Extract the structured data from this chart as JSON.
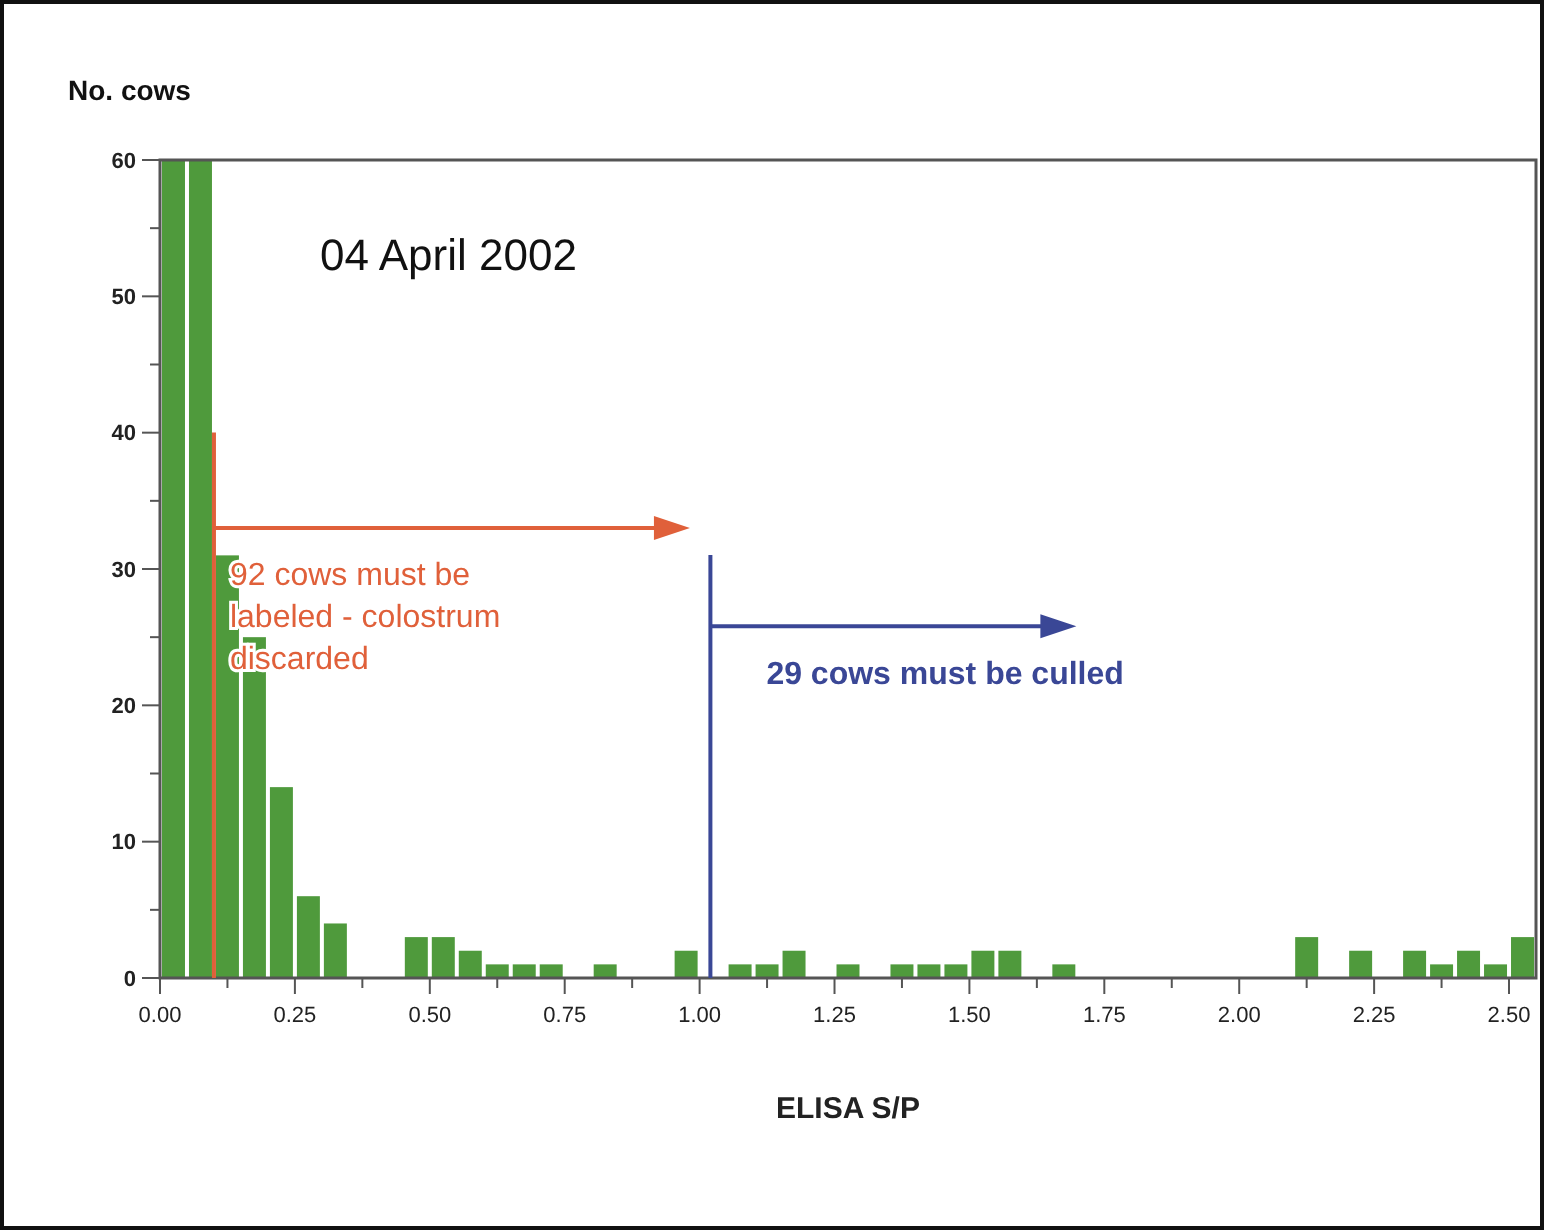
{
  "chart_data": {
    "type": "histogram",
    "title": "04 April 2002",
    "xlabel": "ELISA S/P",
    "ylabel": "No. cows",
    "bins": [
      0,
      0.05,
      0.1,
      0.15,
      0.2,
      0.25,
      0.3,
      0.35,
      0.4,
      0.45,
      0.5,
      0.55,
      0.6,
      0.65,
      0.7,
      0.75,
      0.8,
      0.85,
      0.9,
      0.95,
      1,
      1.05,
      1.1,
      1.15,
      1.2,
      1.25,
      1.3,
      1.35,
      1.4,
      1.45,
      1.5,
      1.55,
      1.6,
      1.65,
      1.7,
      1.75,
      1.8,
      1.85,
      1.9,
      1.95,
      2,
      2.05,
      2.1,
      2.15,
      2.2,
      2.25,
      2.3,
      2.35,
      2.4,
      2.45,
      2.5,
      2.55
    ],
    "values": [
      60,
      60,
      31,
      25,
      14,
      6,
      4,
      0,
      0,
      3,
      3,
      2,
      1,
      1,
      1,
      0,
      1,
      0,
      0,
      2,
      0,
      1,
      1,
      2,
      0,
      1,
      0,
      1,
      1,
      1,
      2,
      2,
      0,
      1,
      0,
      0,
      0,
      0,
      0,
      0,
      0,
      0,
      3,
      0,
      2,
      0,
      2,
      1,
      2,
      1,
      3
    ],
    "color": "#4f9a3c",
    "xlim": [
      0,
      2.55
    ],
    "ylim": [
      0,
      60
    ],
    "xticks": [
      {
        "value": 0,
        "label": "0.00"
      },
      {
        "value": 0.125,
        "label": null
      },
      {
        "value": 0.25,
        "label": "0.25"
      },
      {
        "value": 0.375,
        "label": null
      },
      {
        "value": 0.5,
        "label": "0.50"
      },
      {
        "value": 0.625,
        "label": null
      },
      {
        "value": 0.75,
        "label": "0.75"
      },
      {
        "value": 0.875,
        "label": null
      },
      {
        "value": 1,
        "label": "1.00"
      },
      {
        "value": 1.125,
        "label": null
      },
      {
        "value": 1.25,
        "label": "1.25"
      },
      {
        "value": 1.375,
        "label": null
      },
      {
        "value": 1.5,
        "label": "1.50"
      },
      {
        "value": 1.625,
        "label": null
      },
      {
        "value": 1.75,
        "label": "1.75"
      },
      {
        "value": 1.875,
        "label": null
      },
      {
        "value": 2,
        "label": "2.00"
      },
      {
        "value": 2.125,
        "label": null
      },
      {
        "value": 2.25,
        "label": "2.25"
      },
      {
        "value": 2.375,
        "label": null
      },
      {
        "value": 2.5,
        "label": "2.50"
      }
    ],
    "yticks": [
      0,
      {
        "value": 5,
        "label": null
      },
      10,
      {
        "value": 15,
        "label": null
      },
      20,
      {
        "value": 25,
        "label": null
      },
      30,
      {
        "value": 35,
        "label": null
      },
      40,
      {
        "value": 45,
        "label": null
      },
      50,
      {
        "value": 55,
        "label": null
      },
      60
    ],
    "ref_lines": [
      {
        "axis": "x",
        "value": 0.1,
        "label": "92 cows must be labeled - colostrum discarded",
        "color": "#e0603a"
      },
      {
        "axis": "x",
        "value": 1.02,
        "label": "29 cows must be culled",
        "color": "#3a4796"
      }
    ],
    "grid": false
  }
}
